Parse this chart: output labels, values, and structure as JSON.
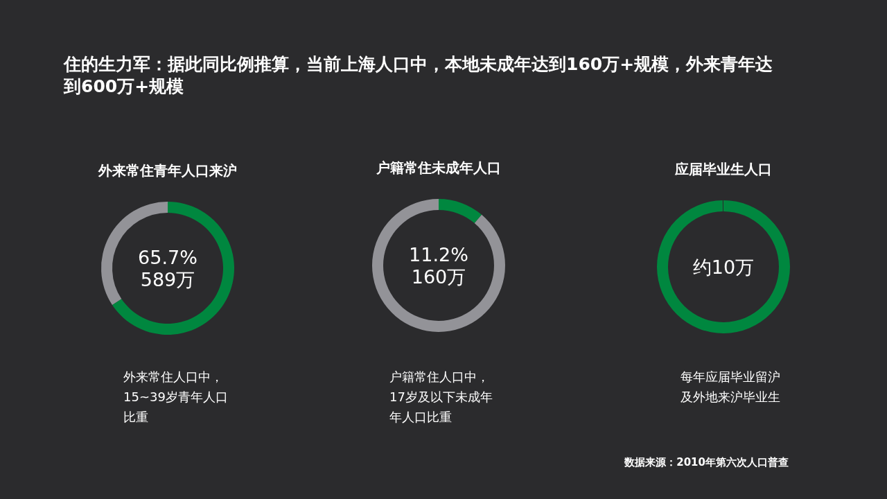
{
  "chart_data": [
    {
      "type": "other",
      "title": "住的生力军：据此同比例推算，当前上海人口中，本地未成年达到160万+规模，外来青年达到600万+规模",
      "annotations": [
        "数据来源：2010年第六次人口普查"
      ]
    },
    {
      "type": "donut",
      "title": "外来常住青年人口来沪",
      "categories": [
        null,
        null
      ],
      "values": [
        65.7,
        34.3
      ],
      "colors": [
        "#00873f",
        "#939398"
      ],
      "value_labels": [
        "65.7%",
        null
      ],
      "annotations": [
        "589万",
        "外来常住人口中，15~39岁青年人口比重"
      ]
    },
    {
      "type": "donut",
      "title": "户籍常住未成年人口",
      "categories": [
        null,
        null
      ],
      "values": [
        11.2,
        88.8
      ],
      "colors": [
        "#00873f",
        "#939398"
      ],
      "value_labels": [
        "11.2%",
        null
      ],
      "annotations": [
        "160万",
        "户籍常住人口中，17岁及以下未成年年人口比重"
      ]
    },
    {
      "type": "pie",
      "title": "应届毕业生人口",
      "categories": [
        null
      ],
      "values": [
        100
      ],
      "colors": [
        "#00873f"
      ],
      "annotations": [
        "约10万",
        "每年应届毕业留沪及外地来沪毕业生"
      ]
    }
  ]
}
